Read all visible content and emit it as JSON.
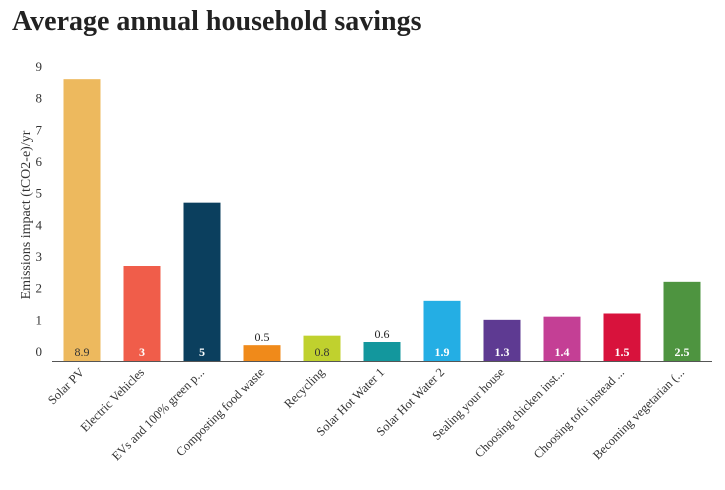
{
  "chart_data": {
    "type": "bar",
    "title": "Average annual household savings",
    "ylabel": "Emissions impact (tCO2-e)/yr",
    "xlabel": "",
    "ylim": [
      0,
      9
    ],
    "yticks": [
      0,
      1,
      2,
      3,
      4,
      5,
      6,
      7,
      8,
      9
    ],
    "grid": false,
    "categories": [
      "Solar PV",
      "Electric Vehicles",
      "EVs and 100% green p...",
      "Composting food waste",
      "Recycling",
      "Solar Hot Water 1",
      "Solar Hot Water 2",
      "Sealing your house",
      "Choosing chicken inst...",
      "Choosing tofu instead ...",
      "Becoming vegetarian (..."
    ],
    "values": [
      8.9,
      3,
      5,
      0.5,
      0.8,
      0.6,
      1.9,
      1.3,
      1.4,
      1.5,
      2.5
    ],
    "value_labels": [
      "8.9",
      "3",
      "5",
      "0.5",
      "0.8",
      "0.6",
      "1.9",
      "1.3",
      "1.4",
      "1.5",
      "2.5"
    ],
    "colors": [
      "#EDB95E",
      "#F05D4A",
      "#0B3F5E",
      "#F08A1A",
      "#C0D12E",
      "#13979D",
      "#24AEE4",
      "#5E3A92",
      "#C43F95",
      "#D8123C",
      "#4E9440"
    ],
    "label_colors": [
      "#333333",
      "#ffffff",
      "#ffffff",
      "#222222",
      "#333333",
      "#222222",
      "#ffffff",
      "#ffffff",
      "#ffffff",
      "#ffffff",
      "#ffffff"
    ]
  }
}
